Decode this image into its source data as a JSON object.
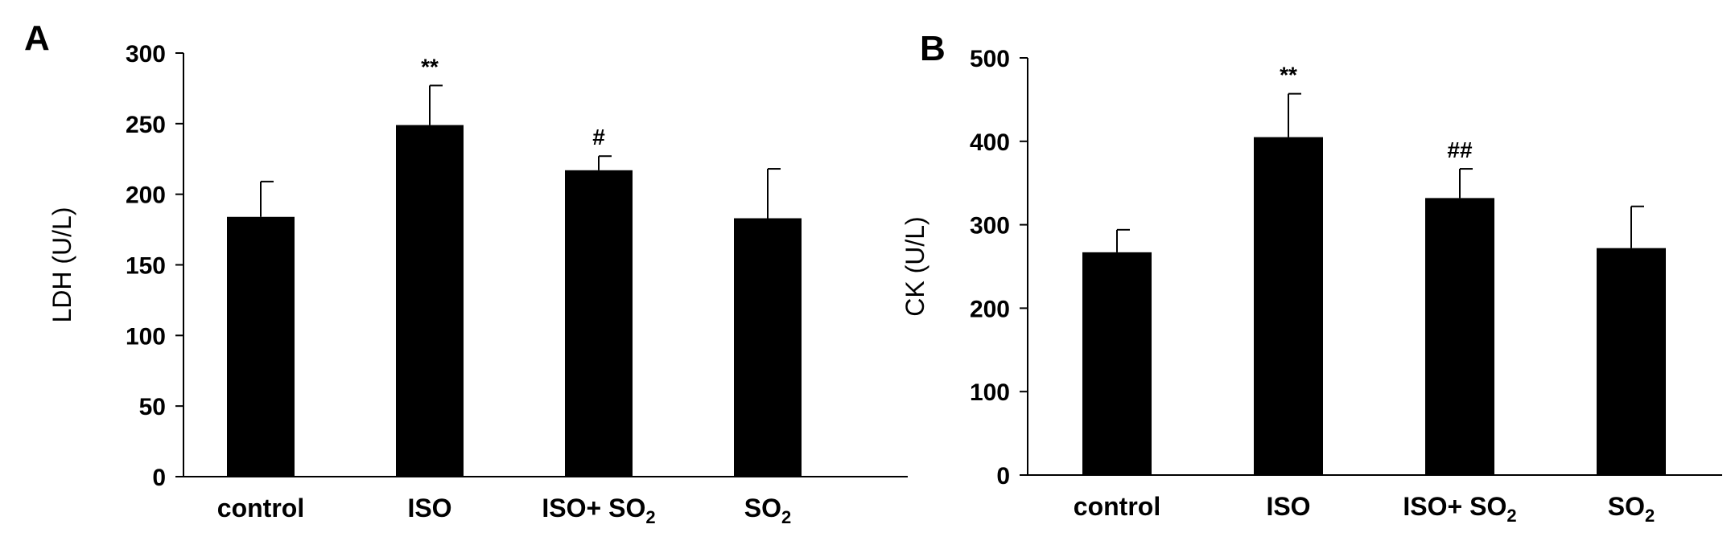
{
  "chart_data": [
    {
      "type": "bar",
      "panel_label": "A",
      "categories": [
        "control",
        "ISO",
        "ISO+ SO2",
        "SO2"
      ],
      "category_parts": [
        {
          "main": "control",
          "sub": ""
        },
        {
          "main": "ISO",
          "sub": ""
        },
        {
          "main": "ISO+ SO",
          "sub": "2"
        },
        {
          "main": "SO",
          "sub": "2"
        }
      ],
      "values": [
        184,
        249,
        217,
        183
      ],
      "errors": [
        25,
        28,
        10,
        35
      ],
      "significance": [
        "",
        "**",
        "#",
        ""
      ],
      "ylabel": "LDH (U/L)",
      "xlabel": "",
      "ylim": [
        0,
        300
      ],
      "yticks": [
        0,
        50,
        100,
        150,
        200,
        250,
        300
      ],
      "bar_color": "#000000"
    },
    {
      "type": "bar",
      "panel_label": "B",
      "categories": [
        "control",
        "ISO",
        "ISO+ SO2",
        "SO2"
      ],
      "category_parts": [
        {
          "main": "control",
          "sub": ""
        },
        {
          "main": "ISO",
          "sub": ""
        },
        {
          "main": "ISO+ SO",
          "sub": "2"
        },
        {
          "main": "SO",
          "sub": "2"
        }
      ],
      "values": [
        267,
        405,
        332,
        272
      ],
      "errors": [
        27,
        52,
        35,
        50
      ],
      "significance": [
        "",
        "**",
        "##",
        ""
      ],
      "ylabel": "CK (U/L)",
      "xlabel": "",
      "ylim": [
        0,
        500
      ],
      "yticks": [
        0,
        100,
        200,
        300,
        400,
        500
      ],
      "bar_color": "#000000"
    }
  ]
}
